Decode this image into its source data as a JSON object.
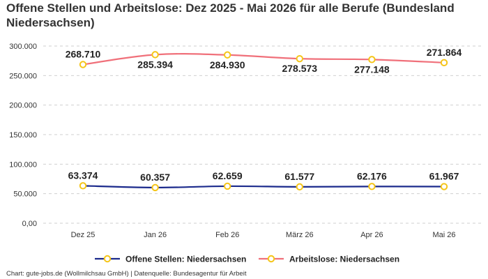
{
  "title": "Offene Stellen und Arbeitslose: Dez 2025 - Mai 2026 für alle Berufe (Bundesland Niedersachsen)",
  "credit": "Chart: gute-jobs.de (Wollmilchsau GmbH) | Datenquelle: Bundesagentur für Arbeit",
  "colors": {
    "offene": "#1b2a8c",
    "arbeitslose": "#f0707a",
    "marker": "#f5c518"
  },
  "chart_data": {
    "type": "line",
    "categories": [
      "Dez 25",
      "Jan 26",
      "Feb 26",
      "März 26",
      "Apr 26",
      "Mai 26"
    ],
    "series": [
      {
        "name": "Offene Stellen: Niedersachsen",
        "values": [
          63374,
          60357,
          62659,
          61577,
          62176,
          61967
        ],
        "labels": [
          "63.374",
          "60.357",
          "62.659",
          "61.577",
          "62.176",
          "61.967"
        ]
      },
      {
        "name": "Arbeitslose: Niedersachsen",
        "values": [
          268710,
          285394,
          284930,
          278573,
          277148,
          271864
        ],
        "labels": [
          "268.710",
          "285.394",
          "284.930",
          "278.573",
          "277.148",
          "271.864"
        ]
      }
    ],
    "yticks": [
      "0,00",
      "50.000",
      "100.000",
      "150.000",
      "200.000",
      "250.000",
      "300.000"
    ],
    "ylim": [
      0,
      300000
    ],
    "grid": true,
    "legend": "bottom"
  }
}
